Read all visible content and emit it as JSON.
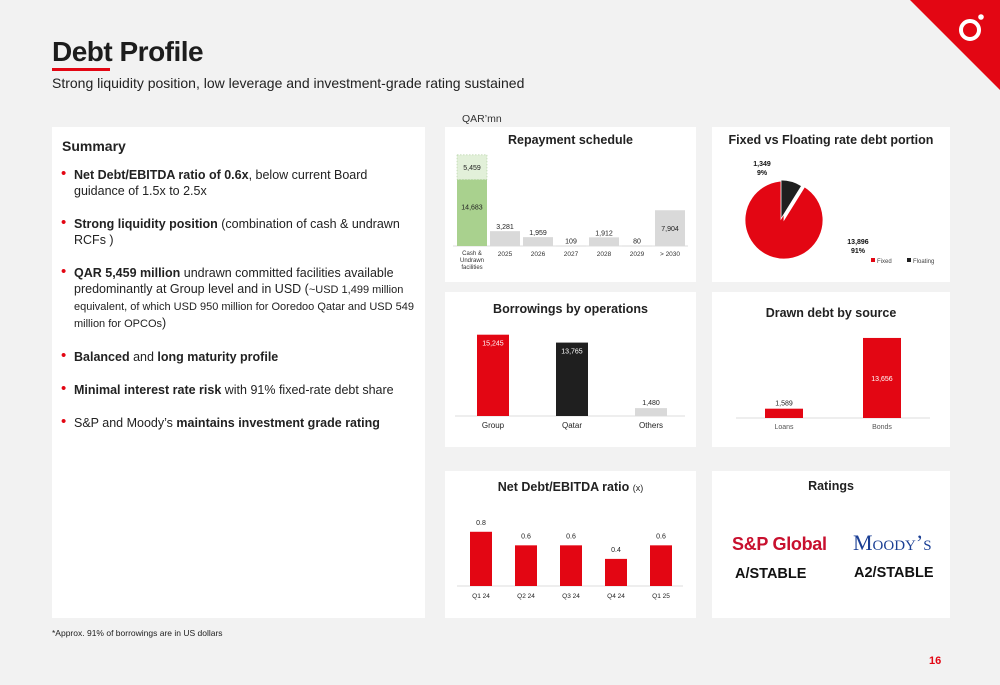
{
  "header": {
    "title": "Debt Profile",
    "subtitle": "Strong liquidity position, low leverage and investment-grade rating sustained",
    "unit": "QAR’mn"
  },
  "summary": {
    "title": "Summary",
    "b1_bold": "Net Debt/EBITDA ratio of 0.6x",
    "b1_rest": ", below current Board guidance of 1.5x to 2.5x",
    "b2_bold": "Strong liquidity position",
    "b2_rest": " (combination of cash & undrawn RCFs )",
    "b3_bold": "QAR 5,459 million",
    "b3_rest": " undrawn committed facilities available predominantly at Group level and in USD (",
    "b3_small": "~USD 1,499 million equivalent, of which USD 950 million for Ooredoo Qatar and USD 549 million for OPCOs",
    "b3_end": ")",
    "b4_bold1": "Balanced",
    "b4_mid": " and ",
    "b4_bold2": "long maturity profile",
    "b5_bold": "Minimal interest rate risk",
    "b5_rest": " with 91% fixed-rate debt share",
    "b6_pre": "S&P and Moody’s ",
    "b6_bold": "maintains investment grade rating"
  },
  "colors": {
    "accent": "#e30613",
    "dark": "#1f1f1f",
    "grey": "#d9d9d9",
    "green": "#a9d18e",
    "green_light": "#e2f0d9"
  },
  "chart_data": [
    {
      "id": "repayment",
      "type": "bar",
      "title": "Repayment schedule",
      "categories": [
        "Cash & Undrawn facilities",
        "2025",
        "2026",
        "2027",
        "2028",
        "2029",
        "> 2030"
      ],
      "series": [
        {
          "values": [
            14683,
            3281,
            1959,
            109,
            1912,
            80,
            7904
          ]
        },
        {
          "values": [
            5459,
            0,
            0,
            0,
            0,
            0,
            0
          ]
        }
      ],
      "labels": [
        "14,683",
        "3,281",
        "1,959",
        "109",
        "1,912",
        "80",
        "7,904"
      ],
      "top_labels": [
        "5,459",
        "",
        "",
        "",
        "",
        "",
        ""
      ],
      "stacked": true,
      "ylim": [
        0,
        21000
      ]
    },
    {
      "id": "fixed_floating",
      "type": "pie",
      "title": "Fixed vs Floating rate debt portion",
      "slices": [
        {
          "name": "Fixed",
          "value": 13896,
          "pct": "91%",
          "label": "13,896"
        },
        {
          "name": "Floating",
          "value": 1349,
          "pct": "9%",
          "label": "1,349"
        }
      ],
      "legend": "bottom-right"
    },
    {
      "id": "operations",
      "type": "bar",
      "title": "Borrowings by operations",
      "categories": [
        "Group",
        "Qatar",
        "Others"
      ],
      "values": [
        15245,
        13765,
        1480
      ],
      "labels": [
        "15,245",
        "13,765",
        "1,480"
      ],
      "ylim": [
        0,
        16500
      ]
    },
    {
      "id": "drawn_source",
      "type": "bar",
      "title": "Drawn debt by source",
      "categories": [
        "Loans",
        "Bonds"
      ],
      "values": [
        1589,
        13656
      ],
      "labels": [
        "1,589",
        "13,656"
      ],
      "ylim": [
        0,
        14500
      ]
    },
    {
      "id": "net_debt_ebitda",
      "type": "bar",
      "title": "Net Debt/EBITDA ratio",
      "title_unit": "(x)",
      "categories": [
        "Q1 24",
        "Q2 24",
        "Q3 24",
        "Q4 24",
        "Q1 25"
      ],
      "values": [
        0.8,
        0.6,
        0.6,
        0.4,
        0.6
      ],
      "labels": [
        "0.8",
        "0.6",
        "0.6",
        "0.4",
        "0.6"
      ],
      "ylim": [
        0,
        0.9
      ]
    }
  ],
  "ratings": {
    "title": "Ratings",
    "sp_name": "S&P Global",
    "sp_rating": "A/STABLE",
    "moody_name": "Moody’s",
    "moody_rating": "A2/STABLE"
  },
  "footer": {
    "footnote": "*Approx. 91% of borrowings are in US dollars",
    "page": "16"
  }
}
